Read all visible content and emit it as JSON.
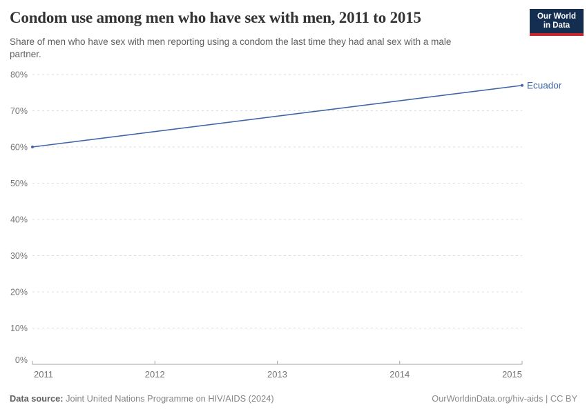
{
  "header": {
    "title": "Condom use among men who have sex with men, 2011 to 2015",
    "subtitle": "Share of men who have sex with men reporting using a condom the last time they had anal sex with a male partner.",
    "logo": {
      "line1": "Our World",
      "line2": "in Data"
    }
  },
  "chart_data": {
    "type": "line",
    "title": "Condom use among men who have sex with men, 2011 to 2015",
    "subtitle": "Share of men who have sex with men reporting using a condom the last time they had anal sex with a male partner.",
    "x": [
      2011,
      2015
    ],
    "series": [
      {
        "name": "Ecuador",
        "values": [
          60,
          77
        ],
        "color": "#4166a7"
      }
    ],
    "xlabel": "",
    "ylabel": "",
    "xlim": [
      2011,
      2015
    ],
    "ylim": [
      0,
      80
    ],
    "xticks": [
      2011,
      2012,
      2013,
      2014,
      2015
    ],
    "yticks": [
      0,
      10,
      20,
      30,
      40,
      50,
      60,
      70,
      80
    ],
    "ytick_suffix": "%",
    "grid": "horizontal-dashed",
    "legend": "none (entity label at line end)",
    "entity_label": "Ecuador"
  },
  "footer": {
    "source_label": "Data source:",
    "source_text": " Joint United Nations Programme on HIV/AIDS (2024)",
    "right_text": "OurWorldinData.org/hiv-aids | CC BY"
  },
  "colors": {
    "line": "#4166a7",
    "grid": "#dcdcdc",
    "axis": "#a3a3a3",
    "tick_label": "#737373",
    "title": "#333333",
    "subtitle": "#5e5e5e",
    "logo_bg": "#142e52",
    "logo_red": "#c5262c"
  }
}
